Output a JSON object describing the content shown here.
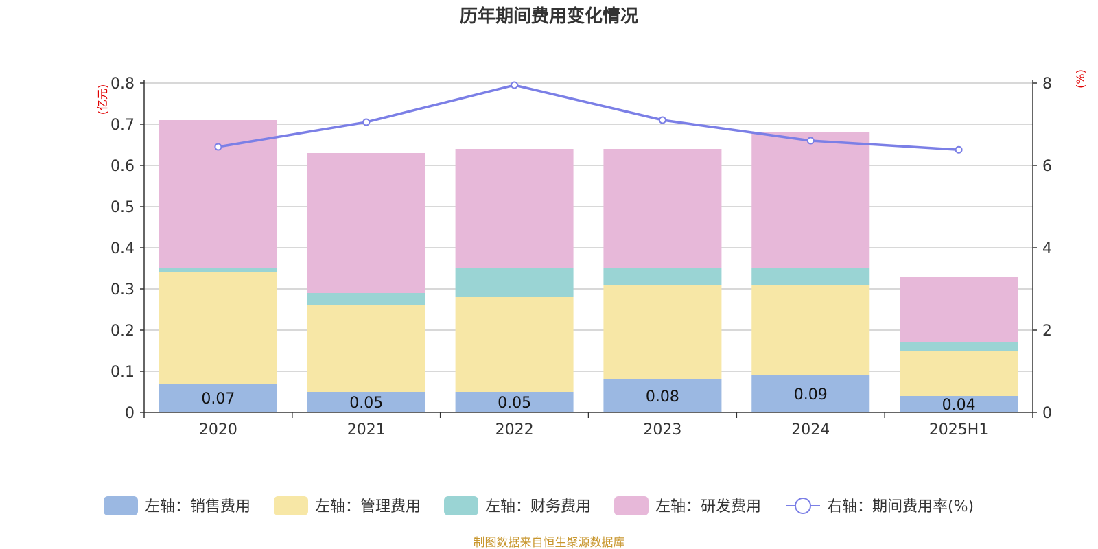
{
  "chart_data": {
    "type": "bar",
    "title": "历年期间费用变化情况",
    "categories": [
      "2020",
      "2021",
      "2022",
      "2023",
      "2024",
      "2025H1"
    ],
    "left_axis": {
      "unit": "(亿元)",
      "ylim": [
        0,
        0.8
      ],
      "ticks": [
        "0",
        "0.1",
        "0.2",
        "0.3",
        "0.4",
        "0.5",
        "0.6",
        "0.7",
        "0.8"
      ]
    },
    "right_axis": {
      "unit": "(%)",
      "ylim": [
        0,
        8
      ],
      "ticks": [
        "0",
        "2",
        "4",
        "6",
        "8"
      ]
    },
    "stacked": true,
    "series": [
      {
        "name": "左轴：销售费用",
        "type": "bar",
        "color": "#9bb8e2",
        "values": [
          0.07,
          0.05,
          0.05,
          0.08,
          0.09,
          0.04
        ],
        "labels": [
          "0.07",
          "0.05",
          "0.05",
          "0.08",
          "0.09",
          "0.04"
        ]
      },
      {
        "name": "左轴：管理费用",
        "type": "bar",
        "color": "#f7e7a6",
        "values": [
          0.27,
          0.21,
          0.23,
          0.23,
          0.22,
          0.11
        ]
      },
      {
        "name": "左轴：财务费用",
        "type": "bar",
        "color": "#9ad4d4",
        "values": [
          0.01,
          0.03,
          0.07,
          0.04,
          0.04,
          0.02
        ]
      },
      {
        "name": "左轴：研发费用",
        "type": "bar",
        "color": "#e7b8d9",
        "values": [
          0.36,
          0.34,
          0.29,
          0.29,
          0.33,
          0.16
        ]
      },
      {
        "name": "右轴：期间费用率(%)",
        "type": "line",
        "axis": "right",
        "color": "#7b7fe6",
        "values": [
          6.45,
          7.05,
          7.95,
          7.1,
          6.6,
          6.38
        ]
      }
    ],
    "grid": true,
    "legend_position": "bottom",
    "source": "制图数据来自恒生聚源数据库"
  }
}
